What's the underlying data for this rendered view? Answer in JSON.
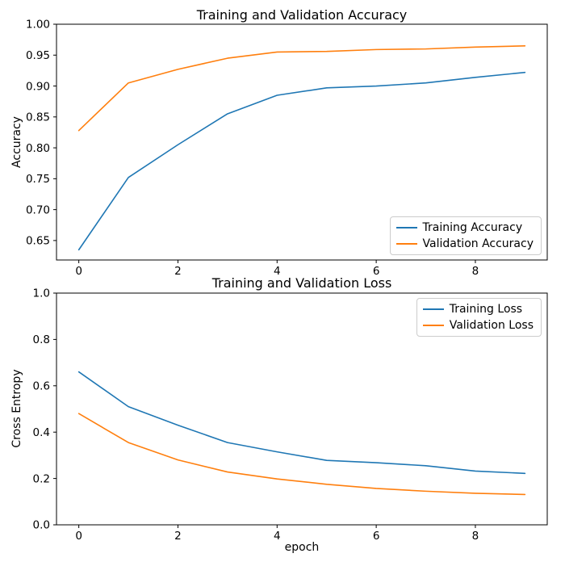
{
  "figure": {
    "background": "#ffffff",
    "text_color": "#000000",
    "spine_color": "#000000"
  },
  "chart_data": [
    {
      "type": "line",
      "title": "Training and Validation Accuracy",
      "xlabel": "",
      "ylabel": "Accuracy",
      "x": [
        0,
        1,
        2,
        3,
        4,
        5,
        6,
        7,
        8,
        9
      ],
      "series": [
        {
          "name": "Training Accuracy",
          "color": "#1f77b4",
          "values": [
            0.635,
            0.752,
            0.805,
            0.855,
            0.885,
            0.897,
            0.9,
            0.905,
            0.914,
            0.922
          ]
        },
        {
          "name": "Validation Accuracy",
          "color": "#ff7f0e",
          "values": [
            0.828,
            0.905,
            0.927,
            0.945,
            0.955,
            0.956,
            0.959,
            0.96,
            0.963,
            0.965
          ]
        }
      ],
      "xlim": [
        -0.45,
        9.45
      ],
      "ylim": [
        0.6185,
        1.0
      ],
      "xticks": [
        0,
        2,
        4,
        6,
        8
      ],
      "xtick_labels": [
        "0",
        "2",
        "4",
        "6",
        "8"
      ],
      "yticks": [
        0.65,
        0.7,
        0.75,
        0.8,
        0.85,
        0.9,
        0.95,
        1.0
      ],
      "ytick_labels": [
        "0.65",
        "0.70",
        "0.75",
        "0.80",
        "0.85",
        "0.90",
        "0.95",
        "1.00"
      ],
      "grid": false,
      "legend": {
        "position": "lower right",
        "entries": [
          "Training Accuracy",
          "Validation Accuracy"
        ]
      }
    },
    {
      "type": "line",
      "title": "Training and Validation Loss",
      "xlabel": "epoch",
      "ylabel": "Cross Entropy",
      "x": [
        0,
        1,
        2,
        3,
        4,
        5,
        6,
        7,
        8,
        9
      ],
      "series": [
        {
          "name": "Training Loss",
          "color": "#1f77b4",
          "values": [
            0.66,
            0.51,
            0.43,
            0.355,
            0.315,
            0.278,
            0.268,
            0.255,
            0.232,
            0.222
          ]
        },
        {
          "name": "Validation Loss",
          "color": "#ff7f0e",
          "values": [
            0.48,
            0.355,
            0.28,
            0.228,
            0.198,
            0.175,
            0.157,
            0.145,
            0.136,
            0.131
          ]
        }
      ],
      "xlim": [
        -0.45,
        9.45
      ],
      "ylim": [
        0.0,
        1.0
      ],
      "xticks": [
        0,
        2,
        4,
        6,
        8
      ],
      "xtick_labels": [
        "0",
        "2",
        "4",
        "6",
        "8"
      ],
      "yticks": [
        0.0,
        0.2,
        0.4,
        0.6,
        0.8,
        1.0
      ],
      "ytick_labels": [
        "0.0",
        "0.2",
        "0.4",
        "0.6",
        "0.8",
        "1.0"
      ],
      "grid": false,
      "legend": {
        "position": "upper right",
        "entries": [
          "Training Loss",
          "Validation Loss"
        ]
      }
    }
  ]
}
